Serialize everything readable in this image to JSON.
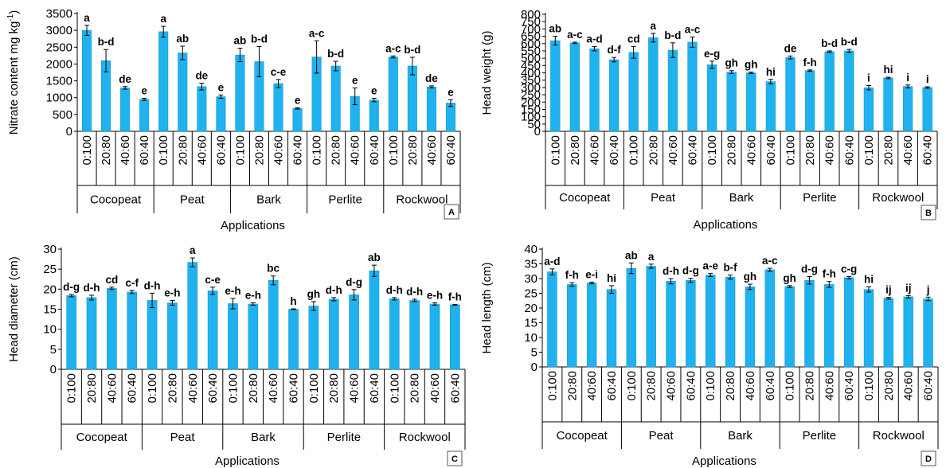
{
  "figure": {
    "groups": [
      "Cocopeat",
      "Peat",
      "Bark",
      "Perlite",
      "Rockwool"
    ],
    "ratios": [
      "0:100",
      "20:80",
      "40:60",
      "60:40"
    ],
    "xlabel": "Applications",
    "bar_color": "#1FB2EE"
  },
  "chart_data": [
    {
      "type": "bar",
      "panel": "A",
      "ylabel": "Nitrate content mg kg-1",
      "ylabel_main": "Nitrate content mg kg",
      "ylabel_sup": "-1",
      "xlabel": "Applications",
      "ylim": [
        0,
        3500
      ],
      "yticks": [
        "0",
        "500",
        "1000",
        "1500",
        "2000",
        "2500",
        "3000",
        "3500"
      ],
      "values": [
        3000,
        2100,
        1290,
        950,
        2960,
        2330,
        1330,
        1030,
        2270,
        2070,
        1420,
        680,
        2210,
        1940,
        1040,
        930,
        2210,
        1940,
        1320,
        840
      ],
      "errors": [
        150,
        330,
        40,
        30,
        160,
        200,
        100,
        50,
        200,
        450,
        120,
        20,
        480,
        140,
        250,
        50,
        30,
        260,
        30,
        100
      ],
      "letters": [
        "a",
        "b-d",
        "de",
        "e",
        "a",
        "ab",
        "de",
        "e",
        "ab",
        "b-d",
        "c-e",
        "e",
        "a-c",
        "b-d",
        "e",
        "e",
        "a-c",
        "b-d",
        "de",
        "e"
      ]
    },
    {
      "type": "bar",
      "panel": "B",
      "ylabel": "Head weight (g)",
      "xlabel": "Applications",
      "ylim": [
        0,
        800
      ],
      "yticks": [
        "0",
        "50",
        "100",
        "150",
        "200",
        "250",
        "300",
        "350",
        "400",
        "450",
        "500",
        "550",
        "600",
        "650",
        "700",
        "750",
        "800"
      ],
      "values": [
        620,
        605,
        565,
        490,
        540,
        640,
        555,
        610,
        455,
        405,
        400,
        340,
        505,
        415,
        545,
        550,
        298,
        365,
        307,
        300
      ],
      "errors": [
        30,
        5,
        15,
        15,
        40,
        30,
        50,
        35,
        25,
        10,
        5,
        15,
        10,
        5,
        5,
        10,
        15,
        5,
        10,
        5
      ],
      "letters": [
        "ab",
        "a-c",
        "a-d",
        "d-f",
        "cd",
        "a",
        "b-d",
        "a-c",
        "e-g",
        "gh",
        "gh",
        "hi",
        "de",
        "f-h",
        "b-d",
        "b-d",
        "i",
        "hi",
        "i",
        "i"
      ]
    },
    {
      "type": "bar",
      "panel": "C",
      "ylabel": "Head diameter (cm)",
      "xlabel": "Applications",
      "ylim": [
        0,
        30
      ],
      "yticks": [
        "0",
        "5",
        "10",
        "15",
        "20",
        "25",
        "30"
      ],
      "values": [
        18.4,
        17.9,
        20.2,
        19.3,
        17.2,
        16.6,
        26.7,
        19.6,
        16.4,
        16.3,
        22.2,
        15.0,
        15.8,
        17.5,
        18.6,
        24.6,
        17.6,
        17.2,
        16.3,
        16.1
      ],
      "errors": [
        0.3,
        0.6,
        0.3,
        0.4,
        1.8,
        0.6,
        1.1,
        0.9,
        1.3,
        0.3,
        1.1,
        0.1,
        1.1,
        0.4,
        1.3,
        1.4,
        0.3,
        0.3,
        0.3,
        0.1
      ],
      "letters": [
        "d-g",
        "d-h",
        "cd",
        "c-f",
        "d-h",
        "e-h",
        "a",
        "c-e",
        "e-h",
        "e-h",
        "bc",
        "h",
        "gh",
        "d-h",
        "d-g",
        "ab",
        "d-h",
        "d-h",
        "e-h",
        "f-h"
      ]
    },
    {
      "type": "bar",
      "panel": "D",
      "ylabel": "Head length (cm)",
      "xlabel": "Applications",
      "ylim": [
        0,
        40
      ],
      "yticks": [
        "0",
        "5",
        "10",
        "15",
        "20",
        "25",
        "30",
        "35",
        "40"
      ],
      "values": [
        32.3,
        28.0,
        28.5,
        26.3,
        33.5,
        34.2,
        29.1,
        29.4,
        31.2,
        30.5,
        27.2,
        33.0,
        27.3,
        29.4,
        28.0,
        30.3,
        26.3,
        23.3,
        23.8,
        23.1
      ],
      "errors": [
        1.0,
        0.6,
        0.3,
        1.3,
        1.8,
        0.7,
        0.9,
        0.7,
        0.5,
        0.7,
        0.9,
        0.5,
        0.3,
        1.3,
        1.0,
        0.4,
        0.9,
        0.3,
        0.4,
        0.6
      ],
      "letters": [
        "a-d",
        "f-h",
        "e-i",
        "hi",
        "ab",
        "a",
        "d-h",
        "d-g",
        "a-e",
        "b-f",
        "gh",
        "a-c",
        "gh",
        "d-g",
        "f-h",
        "c-g",
        "hi",
        "ij",
        "ij",
        "j"
      ]
    }
  ]
}
